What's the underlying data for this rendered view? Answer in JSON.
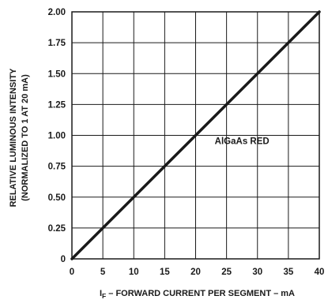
{
  "chart_data": {
    "type": "line",
    "xlabel_main": "I",
    "xlabel_sub": "F",
    "xlabel_rest": " – FORWARD CURRENT PER SEGMENT – mA",
    "ylabel_line1": "RELATIVE LUMINOUS INTENSITY",
    "ylabel_line2": "(NORMALIZED TO 1 AT 20 mA)",
    "xlim": [
      0,
      40
    ],
    "ylim": [
      0,
      2.0
    ],
    "x_ticks": [
      0,
      5,
      10,
      15,
      20,
      25,
      30,
      35,
      40
    ],
    "x_tick_labels": [
      "0",
      "5",
      "10",
      "15",
      "20",
      "25",
      "30",
      "35",
      "40"
    ],
    "y_ticks": [
      0,
      0.25,
      0.5,
      0.75,
      1.0,
      1.25,
      1.5,
      1.75,
      2.0
    ],
    "y_tick_labels": [
      "0",
      "0.25",
      "0.50",
      "0.75",
      "1.00",
      "1.25",
      "1.50",
      "1.75",
      "2.00"
    ],
    "grid": true,
    "series": [
      {
        "name": "AlGaAs RED",
        "x": [
          0,
          40
        ],
        "y": [
          0,
          2.0
        ],
        "color": "#1a1a1a"
      }
    ],
    "annotations": [
      {
        "text": "AlGaAs RED",
        "x": 27.5,
        "y": 0.93
      }
    ]
  }
}
